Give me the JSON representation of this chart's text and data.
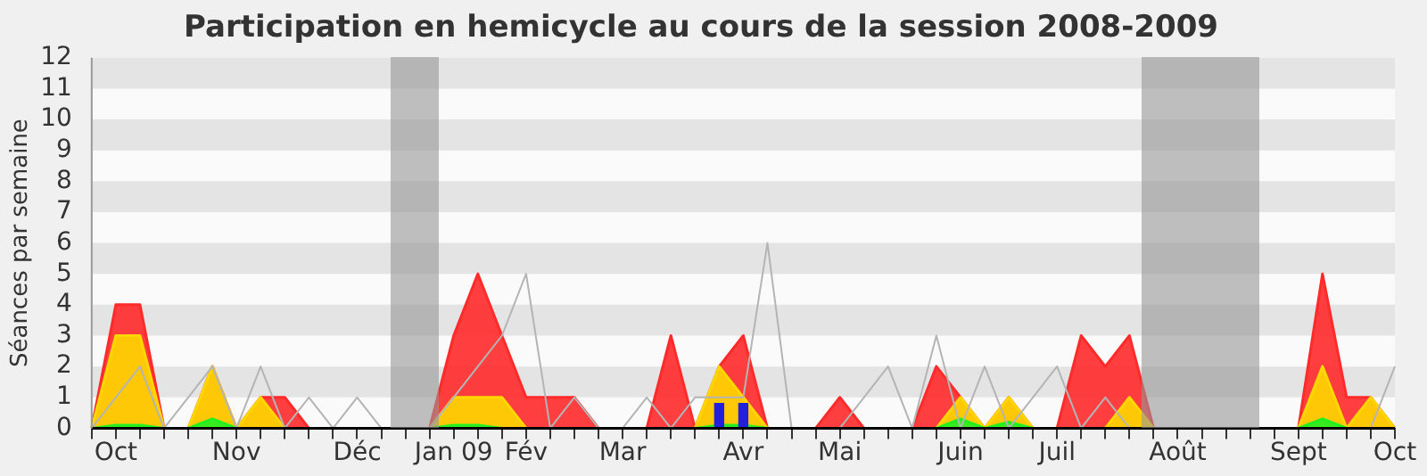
{
  "chart_data": {
    "type": "area",
    "title": "Participation en hemicycle au cours de la session 2008-2009",
    "ylabel": "Séances par semaine",
    "categories": [
      null,
      "Oct",
      null,
      null,
      null,
      null,
      "Nov",
      null,
      null,
      null,
      null,
      "Déc",
      null,
      null,
      null,
      "Jan 09",
      null,
      null,
      "Fév",
      null,
      null,
      null,
      "Mar",
      null,
      null,
      null,
      null,
      "Avr",
      null,
      null,
      null,
      "Mai",
      null,
      null,
      null,
      null,
      "Juin",
      null,
      null,
      null,
      "Juil",
      null,
      null,
      null,
      null,
      "Août",
      null,
      null,
      null,
      null,
      "Sept",
      null,
      null,
      null,
      "Oct"
    ],
    "series": [
      {
        "color": "#ff2a2a",
        "values": [
          0,
          4,
          4,
          0,
          0,
          2,
          0,
          1,
          1,
          0,
          0,
          0,
          0,
          0,
          0,
          3,
          5,
          3,
          1,
          1,
          1,
          0,
          0,
          0,
          3,
          0,
          2,
          3,
          0,
          0,
          0,
          1,
          0,
          0,
          0,
          2,
          1,
          0,
          1,
          0,
          0,
          3,
          2,
          3,
          0,
          0,
          0,
          0,
          0,
          0,
          0,
          5,
          1,
          1,
          0
        ]
      },
      {
        "color": "#ffd700",
        "values": [
          0,
          3,
          3,
          0,
          0,
          2,
          0,
          1,
          0,
          0,
          0,
          0,
          0,
          0,
          0,
          1,
          1,
          1,
          0,
          0,
          0,
          0,
          0,
          0,
          0,
          0,
          2,
          1,
          0,
          0,
          0,
          0,
          0,
          0,
          0,
          0,
          1,
          0,
          1,
          0,
          0,
          0,
          0,
          1,
          0,
          0,
          0,
          0,
          0,
          0,
          0,
          2,
          0,
          1,
          0
        ]
      },
      {
        "color": "#22ee22",
        "values": [
          0,
          0.1,
          0.1,
          0,
          0,
          0.3,
          0,
          0,
          0,
          0,
          0,
          0,
          0,
          0,
          0,
          0.1,
          0.1,
          0,
          0,
          0,
          0,
          0,
          0,
          0,
          0,
          0,
          0.1,
          0.1,
          0,
          0,
          0,
          0,
          0,
          0,
          0,
          0,
          0.3,
          0,
          0.2,
          0,
          0,
          0,
          0,
          0,
          0,
          0,
          0,
          0,
          0,
          0,
          0,
          0.3,
          0,
          0,
          0
        ]
      },
      {
        "type": "line",
        "color": "#b4b4b4",
        "values": [
          0,
          1,
          2,
          0,
          1,
          2,
          0,
          2,
          0,
          1,
          0,
          1,
          0,
          0,
          0,
          1,
          2,
          3,
          5,
          0,
          1,
          0,
          0,
          1,
          0,
          1,
          1,
          1,
          6,
          0,
          0,
          0,
          1,
          2,
          0,
          3,
          0,
          2,
          0,
          1,
          2,
          0,
          1,
          0,
          0,
          0,
          0,
          0,
          0,
          0,
          0,
          0,
          0,
          0,
          2
        ]
      },
      {
        "type": "bar",
        "color": "#2020dd",
        "values": [
          null,
          null,
          null,
          null,
          null,
          null,
          null,
          null,
          null,
          null,
          null,
          null,
          null,
          null,
          null,
          null,
          null,
          null,
          null,
          null,
          null,
          null,
          null,
          null,
          null,
          null,
          0.8,
          0.8,
          null,
          null,
          null,
          null,
          null,
          null,
          null,
          null,
          null,
          null,
          null,
          null,
          null,
          null,
          null,
          null,
          null,
          null,
          null,
          null,
          null,
          null,
          null,
          null,
          null,
          null,
          null
        ]
      }
    ],
    "ylim": [
      0,
      12
    ],
    "yticks": [
      0,
      1,
      2,
      3,
      4,
      5,
      6,
      7,
      8,
      9,
      10,
      11,
      12
    ],
    "grid": false
  }
}
